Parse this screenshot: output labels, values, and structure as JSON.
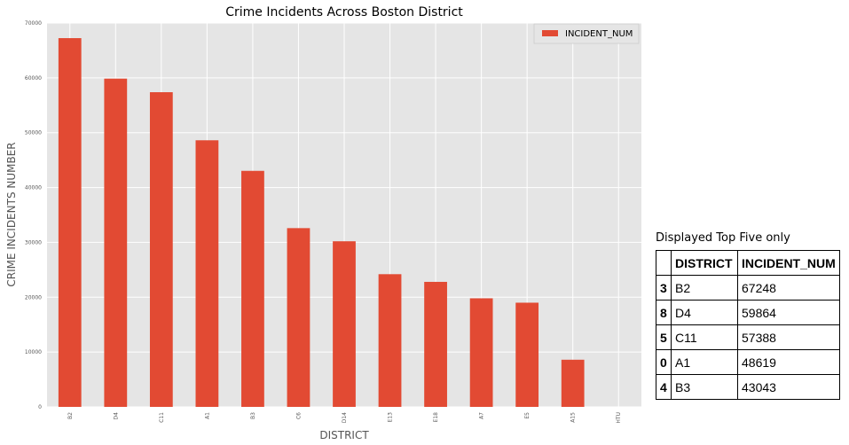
{
  "chart_data": {
    "type": "bar",
    "title": "Crime Incidents Across Boston District",
    "xlabel": "DISTRICT",
    "ylabel": "CRIME INCIDENTS NUMBER",
    "categories": [
      "B2",
      "D4",
      "C11",
      "A1",
      "B3",
      "C6",
      "D14",
      "E13",
      "E18",
      "A7",
      "E5",
      "A15",
      "HTU"
    ],
    "series": [
      {
        "name": "INCIDENT_NUM",
        "values": [
          67248,
          59864,
          57388,
          48619,
          43043,
          32600,
          30200,
          24200,
          22800,
          19800,
          19000,
          8600,
          0
        ]
      }
    ],
    "ylim": [
      0,
      70000
    ],
    "yticks": [
      0,
      10000,
      20000,
      30000,
      40000,
      50000,
      60000,
      70000
    ],
    "grid": true,
    "legend": "top-right",
    "colors": {
      "bar": "#E24A33",
      "background": "#E5E5E5",
      "grid": "#FFFFFF"
    }
  },
  "table": {
    "caption": "Displayed Top Five only",
    "headers": [
      "",
      "DISTRICT",
      "INCIDENT_NUM"
    ],
    "rows": [
      {
        "index": "3",
        "district": "B2",
        "num": "67248"
      },
      {
        "index": "8",
        "district": "D4",
        "num": "59864"
      },
      {
        "index": "5",
        "district": "C11",
        "num": "57388"
      },
      {
        "index": "0",
        "district": "A1",
        "num": "48619"
      },
      {
        "index": "4",
        "district": "B3",
        "num": "43043"
      }
    ]
  }
}
